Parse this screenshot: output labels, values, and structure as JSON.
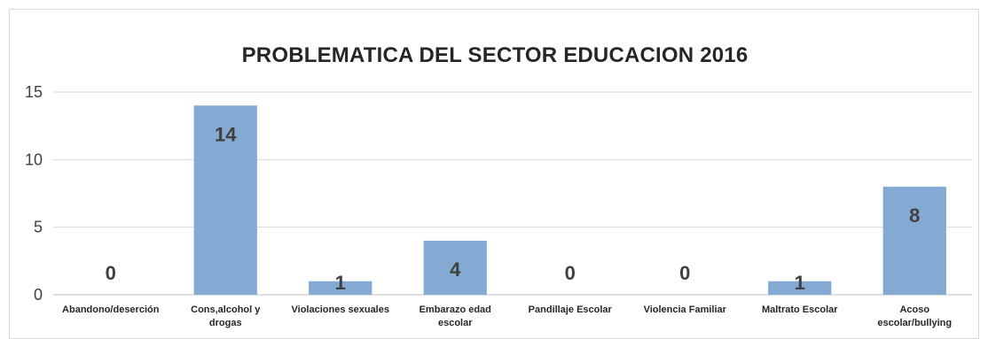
{
  "chart_data": {
    "type": "bar",
    "title": "PROBLEMATICA DEL SECTOR EDUCACION 2016",
    "categories": [
      [
        "Abandono/deserción"
      ],
      [
        "Cons,alcohol y",
        "drogas"
      ],
      [
        "Violaciones sexuales"
      ],
      [
        "Embarazo edad",
        "escolar"
      ],
      [
        "Pandillaje Escolar"
      ],
      [
        "Violencia Familiar"
      ],
      [
        "Maltrato Escolar"
      ],
      [
        "Acoso",
        "escolar/bullying"
      ]
    ],
    "values": [
      0,
      14,
      1,
      4,
      0,
      0,
      1,
      8
    ],
    "ylim": [
      0,
      15
    ],
    "yticks": [
      0,
      5,
      10,
      15
    ],
    "grid": true,
    "legend": "none",
    "bar_color": "#84a9d3",
    "grid_color": "#d9d9d9"
  }
}
